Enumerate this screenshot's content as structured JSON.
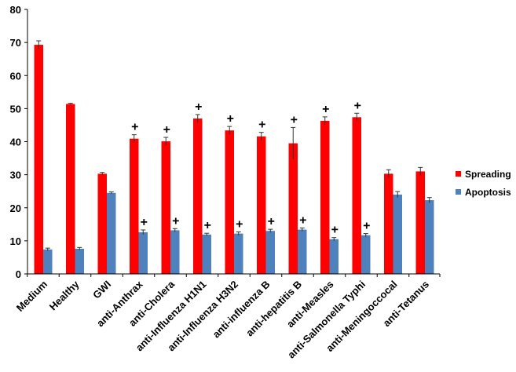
{
  "chart_data": {
    "type": "bar",
    "title": "",
    "xlabel": "",
    "ylabel": "",
    "ylim": [
      0,
      80
    ],
    "yticks": [
      0,
      10,
      20,
      30,
      40,
      50,
      60,
      70,
      80
    ],
    "grid": false,
    "legend_position": "right",
    "categories": [
      "Medium",
      "Healthy",
      "GWI",
      "anti-Anthrax",
      "anti-Cholera",
      "anti-Influenza H1N1",
      "anti-Influenza H3N2",
      "anti-influenza B",
      "anti-hepatitis B",
      "anti-Measles",
      "anti-Salmonella Typhi",
      "anti-Meningoccocal",
      "anti-Tetanus"
    ],
    "series": [
      {
        "name": "Spreading",
        "color": "#ff0000",
        "values": [
          69.3,
          51.4,
          30.3,
          40.9,
          40.1,
          47.0,
          43.4,
          41.6,
          39.5,
          46.3,
          47.4,
          30.3,
          31.0
        ],
        "errors": [
          1.2,
          0.2,
          0.4,
          1.2,
          1.2,
          1.2,
          1.2,
          1.2,
          4.8,
          1.2,
          1.2,
          1.2,
          1.2
        ],
        "markers": [
          "",
          "",
          "",
          "+",
          "+",
          "+",
          "+",
          "+",
          "+",
          "+",
          "+",
          "",
          ""
        ]
      },
      {
        "name": "Apoptosis",
        "color": "#4f81bd",
        "values": [
          7.4,
          7.6,
          24.5,
          12.6,
          13.2,
          11.9,
          12.2,
          13.0,
          13.4,
          10.5,
          11.7,
          24.0,
          22.3
        ],
        "errors": [
          0.4,
          0.4,
          0.3,
          0.7,
          0.5,
          0.4,
          0.5,
          0.5,
          0.5,
          0.5,
          0.5,
          0.9,
          0.8
        ],
        "markers": [
          "",
          "",
          "",
          "+",
          "+",
          "+",
          "+",
          "+",
          "+",
          "+",
          "+",
          "",
          ""
        ]
      }
    ]
  }
}
